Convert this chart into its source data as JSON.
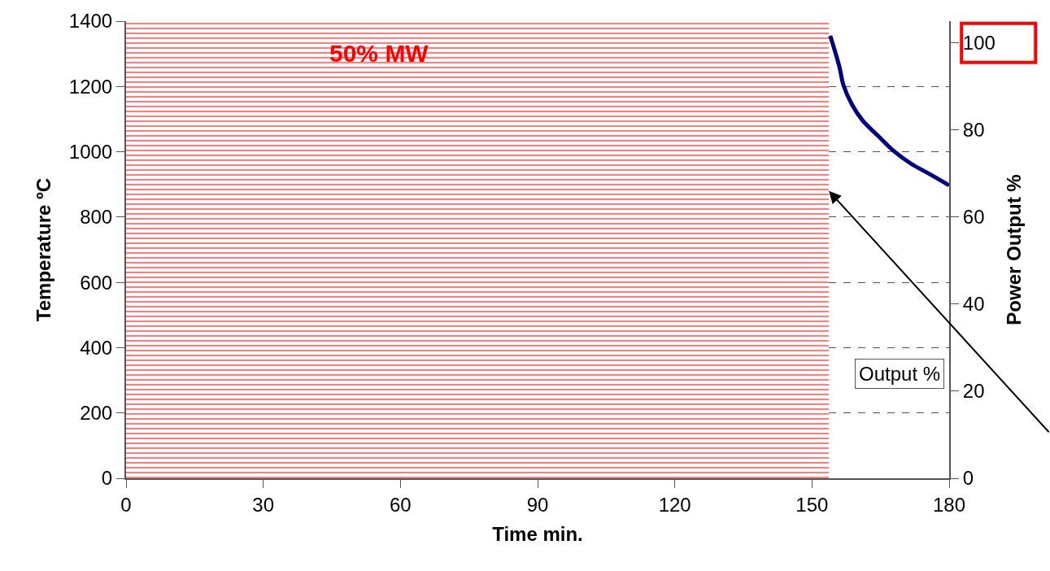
{
  "chart_data": {
    "type": "line",
    "xlabel": "Time min.",
    "ylabel": "Temperature ºC",
    "y2label": "Power Output %",
    "series": [
      {
        "color": "#000080",
        "x": [
          154,
          156,
          156.9,
          158.7,
          161,
          164.5,
          168,
          171.6,
          175.7,
          180
        ],
        "values": [
          1355,
          1260,
          1203,
          1146,
          1097,
          1048,
          1001,
          964,
          932,
          897
        ]
      }
    ],
    "xlim": [
      0,
      180
    ],
    "xticks": [
      0,
      30,
      60,
      90,
      120,
      150,
      180
    ],
    "ylim": [
      0,
      1400
    ],
    "yticks": [
      0,
      200,
      400,
      600,
      800,
      1000,
      1200,
      1400
    ],
    "y2lim": [
      0,
      105
    ],
    "y2ticks": [
      0,
      20,
      40,
      60,
      80,
      100
    ],
    "bands": [
      {
        "axis": "x",
        "from": 0,
        "to": 153.7,
        "label": "50% MW",
        "color": "#ff0000"
      }
    ],
    "annotations": [
      "Output %"
    ],
    "grid": "y",
    "line_style": "solid",
    "marker": "none"
  }
}
